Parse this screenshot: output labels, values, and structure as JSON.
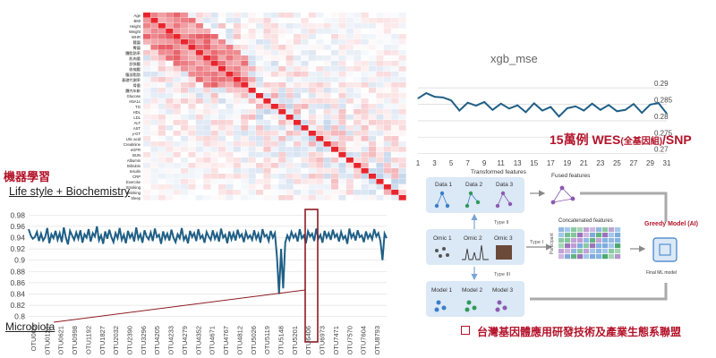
{
  "heatmap": {
    "row_labels": [
      "Age",
      "BMI",
      "Height",
      "Weight",
      "WHR",
      "腰圍",
      "臀圍",
      "體脂肪率",
      "肌肉量",
      "舒張壓",
      "收縮壓",
      "腹部脂肪",
      "基礎代謝率",
      "骨量",
      "體內年齡",
      "Glucose",
      "HbA1c",
      "TG",
      "HDL",
      "LDL",
      "ALT",
      "AST",
      "γ-GT",
      "Uric acid",
      "Creatinine",
      "eGFR",
      "BUN",
      "Albumin",
      "Bilirubin",
      "Insulin",
      "CRP",
      "Exercise",
      "Smoking",
      "Drinking",
      "Sleep"
    ],
    "low_color": "#4a7fc0",
    "mid_color": "#ffffff",
    "high_color": "#e0303a",
    "diag_color": "#e8252d"
  },
  "xgb": {
    "title": "xgb_mse",
    "y_ticks": [
      "0.29",
      "0.285",
      "0.28",
      "0.275",
      "0.27"
    ],
    "x_ticks": [
      "1",
      "3",
      "5",
      "7",
      "9",
      "11",
      "13",
      "15",
      "17",
      "19",
      "21",
      "23",
      "25",
      "27",
      "29",
      "31"
    ],
    "line_color": "#1f5f86",
    "chart_data": {
      "type": "line",
      "x": [
        1,
        2,
        3,
        4,
        5,
        6,
        7,
        8,
        9,
        10,
        11,
        12,
        13,
        14,
        15,
        16,
        17,
        18,
        19,
        20,
        21,
        22,
        23,
        24,
        25,
        26,
        27,
        28,
        29,
        30,
        31
      ],
      "values": [
        0.2868,
        0.2884,
        0.2873,
        0.2871,
        0.2862,
        0.2831,
        0.2855,
        0.2846,
        0.2857,
        0.2833,
        0.2852,
        0.2837,
        0.2847,
        0.2826,
        0.2853,
        0.2831,
        0.2842,
        0.2813,
        0.2838,
        0.2844,
        0.2831,
        0.2852,
        0.2833,
        0.2848,
        0.2829,
        0.2833,
        0.2851,
        0.2824,
        0.2849,
        0.2854,
        0.2822
      ],
      "ylim": [
        0.268,
        0.2925
      ]
    }
  },
  "wes_label": {
    "main_a": "15萬例 WES",
    "small": "(全基因組)",
    "main_b": "/SNP"
  },
  "ml_title": "機器學習",
  "ml_subtitle": "Life style + Biochemistry",
  "otu": {
    "y_ticks": [
      "0.98",
      "0.96",
      "0.94",
      "0.92",
      "0.9",
      "0.88",
      "0.86",
      "0.84",
      "0.82",
      "0.8"
    ],
    "x_ticks": [
      "OTU005",
      "OTU0121",
      "OTU0621",
      "OTU0998",
      "OTU1192",
      "OTU1827",
      "OTU2032",
      "OTU2390",
      "OTU3296",
      "OTU4205",
      "OTU4233",
      "OTU4279",
      "OTU4352",
      "OTU4671",
      "OTU4767",
      "OTU4812",
      "OTU5026",
      "OTU5119",
      "OTU5148",
      "OTU5201",
      "OTU6406",
      "OTU6973",
      "OTU7471",
      "OTU7570",
      "OTU7604",
      "OTU8793"
    ],
    "line_color": "#1f5f86",
    "highlight_color": "#8c1b22",
    "chart_data": {
      "type": "line",
      "ylim": [
        0.79,
        0.99
      ],
      "values": [
        0.955,
        0.944,
        0.938,
        0.941,
        0.95,
        0.934,
        0.947,
        0.935,
        0.941,
        0.957,
        0.93,
        0.946,
        0.939,
        0.952,
        0.936,
        0.948,
        0.932,
        0.958,
        0.94,
        0.928,
        0.952,
        0.944,
        0.936,
        0.949,
        0.938,
        0.953,
        0.931,
        0.946,
        0.94,
        0.955,
        0.933,
        0.948,
        0.942,
        0.96,
        0.935,
        0.944,
        0.929,
        0.951,
        0.938,
        0.954,
        0.941,
        0.932,
        0.948,
        0.939,
        0.957,
        0.936,
        0.945,
        0.93,
        0.952,
        0.94,
        0.947,
        0.933,
        0.958,
        0.938,
        0.946,
        0.931,
        0.953,
        0.942,
        0.937,
        0.949,
        0.934,
        0.956,
        0.941,
        0.945,
        0.929,
        0.951,
        0.938,
        0.947,
        0.935,
        0.954,
        0.94,
        0.932,
        0.946,
        0.939,
        0.957,
        0.936,
        0.943,
        0.93,
        0.952,
        0.941,
        0.948,
        0.934,
        0.955,
        0.939,
        0.944,
        0.931,
        0.95,
        0.942,
        0.936,
        0.953,
        0.938,
        0.947,
        0.933,
        0.956,
        0.94,
        0.945,
        0.93,
        0.951,
        0.937,
        0.948,
        0.935,
        0.954,
        0.941,
        0.946,
        0.932,
        0.95,
        0.939,
        0.944,
        0.936,
        0.953,
        0.938,
        0.947,
        0.931,
        0.955,
        0.942,
        0.945,
        0.934,
        0.952,
        0.94,
        0.948,
        0.906,
        0.84,
        0.92,
        0.85,
        0.931,
        0.944,
        0.936,
        0.95,
        0.94,
        0.946,
        0.933,
        0.955,
        0.939,
        0.944,
        0.93,
        0.951,
        0.942,
        0.947,
        0.934,
        0.956,
        0.938,
        0.945,
        0.931,
        0.952,
        0.94,
        0.948,
        0.936,
        0.954,
        0.941,
        0.946,
        0.933,
        0.95,
        0.938,
        0.943,
        0.929,
        0.956,
        0.94,
        0.947,
        0.935,
        0.953,
        0.941,
        0.944,
        0.932,
        0.951,
        0.939,
        0.946,
        0.937,
        0.955,
        0.942,
        0.948,
        0.934,
        0.9,
        0.947,
        0.939
      ]
    }
  },
  "microbiota_label": "Microbiota",
  "diagram": {
    "transformed_title": "Transformed features",
    "data_labels": [
      "Data 1",
      "Data 2",
      "Data 3"
    ],
    "fused_title": "Fused features",
    "type2": "Type II",
    "type1": "Type I",
    "type3": "Type III",
    "omic_labels": [
      "Omic 1",
      "Omic 2",
      "Omic 3"
    ],
    "concat_title": "Concatenated features",
    "participant": "Participant",
    "model_labels": [
      "Model 1",
      "Model 2",
      "Model 3"
    ],
    "final_label": "Final ML model",
    "greedy_label": "Greedy Model (AI)"
  },
  "alliance": "台灣基因體應用研發技術及產業生態系聯盟"
}
